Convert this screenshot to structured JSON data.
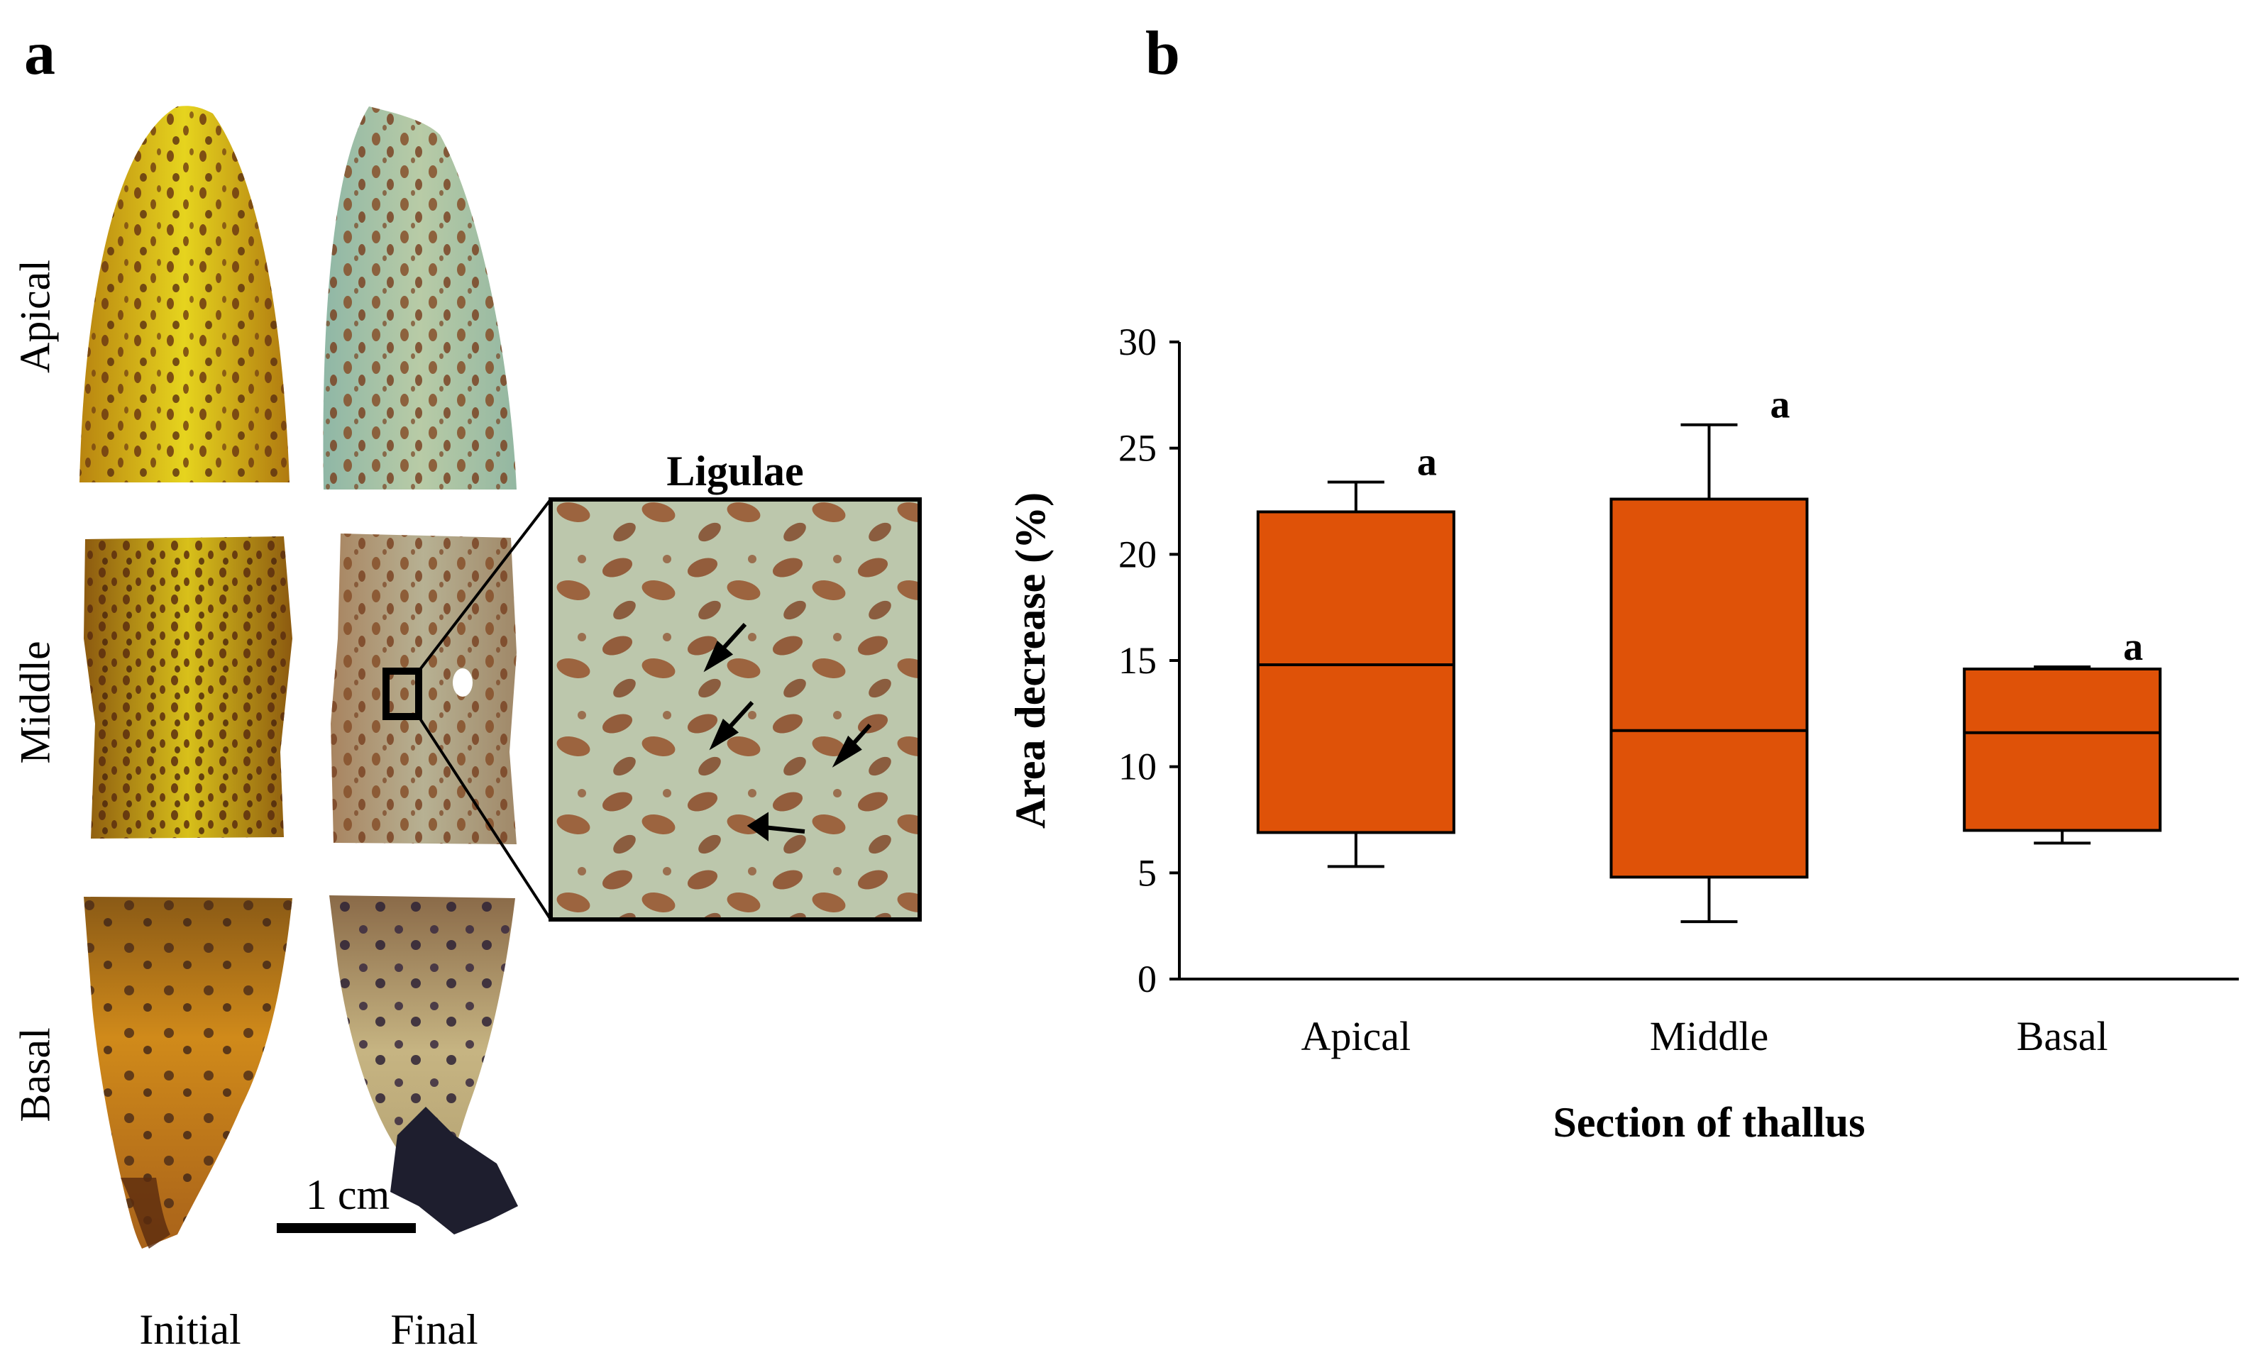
{
  "panel_a": {
    "letter": "a",
    "row_labels": [
      "Apical",
      "Middle",
      "Basal"
    ],
    "column_labels": [
      "Initial",
      "Final"
    ],
    "inset_title": "Ligulae",
    "scale_bar": "1 cm",
    "colors": {
      "initial_tissue": "#c99a12",
      "initial_highlight": "#e4d21e",
      "final_tissue": "#a9c2a4",
      "spots": "#7a3c1c",
      "basal_tissue": "#b8741a"
    }
  },
  "panel_b": {
    "letter": "b"
  },
  "chart_data": {
    "type": "box",
    "xlabel": "Section of thallus",
    "ylabel": "Area decrease (%)",
    "ylim": [
      0,
      30
    ],
    "yticks": [
      0,
      5,
      10,
      15,
      20,
      25,
      30
    ],
    "grid": false,
    "box_color": "#df5208",
    "categories": [
      "Apical",
      "Middle",
      "Basal"
    ],
    "boxes": [
      {
        "category": "Apical",
        "min": 5.3,
        "q1": 6.9,
        "median": 14.8,
        "q3": 22.0,
        "max": 23.4,
        "letter": "a"
      },
      {
        "category": "Middle",
        "min": 2.7,
        "q1": 4.8,
        "median": 11.7,
        "q3": 22.6,
        "max": 26.1,
        "letter": "a"
      },
      {
        "category": "Basal",
        "min": 6.4,
        "q1": 7.0,
        "median": 11.6,
        "q3": 14.6,
        "max": 14.7,
        "letter": "a"
      }
    ]
  }
}
